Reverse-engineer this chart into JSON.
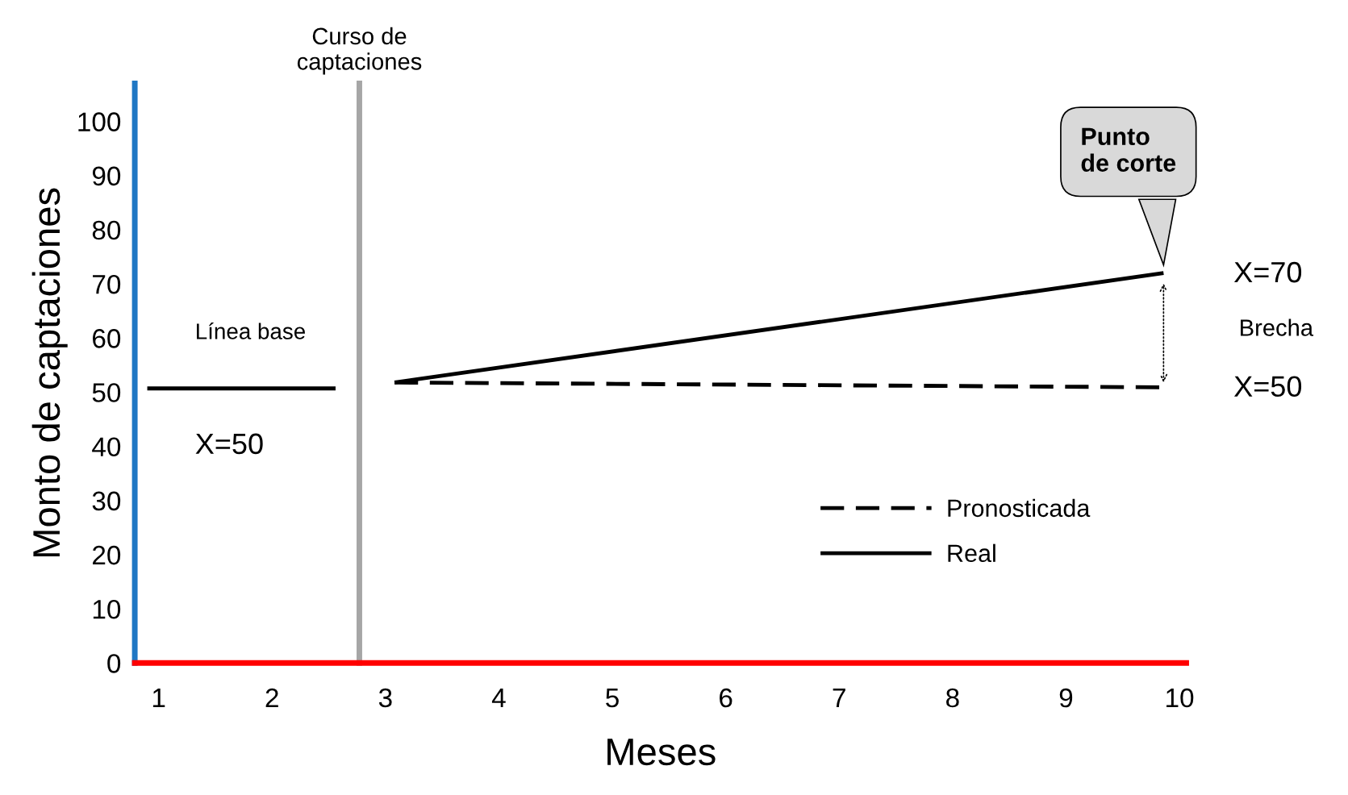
{
  "chart_data": {
    "type": "line",
    "xlabel": "Meses",
    "ylabel": "Monto de captaciones",
    "xlim": [
      0.79,
      10.06
    ],
    "ylim": [
      0,
      107
    ],
    "xticks": [
      1,
      2,
      3,
      4,
      5,
      6,
      7,
      8,
      9,
      10
    ],
    "yticks": [
      0,
      10,
      20,
      30,
      40,
      50,
      60,
      70,
      80,
      90,
      100
    ],
    "series": [
      {
        "color": "#000000",
        "line_style": "solid",
        "x": [
          0.9,
          2.56
        ],
        "values": [
          50.7,
          50.7
        ]
      },
      {
        "name": "Pronosticada",
        "color": "#000000",
        "line_style": "dashed",
        "x": [
          3.08,
          9.86
        ],
        "values": [
          51.8,
          50.9
        ]
      },
      {
        "name": "Real",
        "color": "#000000",
        "line_style": "solid",
        "x": [
          3.08,
          9.86
        ],
        "values": [
          51.8,
          72.0
        ]
      }
    ],
    "ref_lines": [
      {
        "axis": "x",
        "value": 2.77,
        "label": "Curso de\ncaptaciones",
        "color": "#a6a6a6"
      }
    ],
    "annotations": [
      "Línea base",
      "X=50",
      "X=70",
      "Brecha",
      "X=50",
      "Punto\nde corte"
    ],
    "legend": "lower right",
    "grid": false
  }
}
